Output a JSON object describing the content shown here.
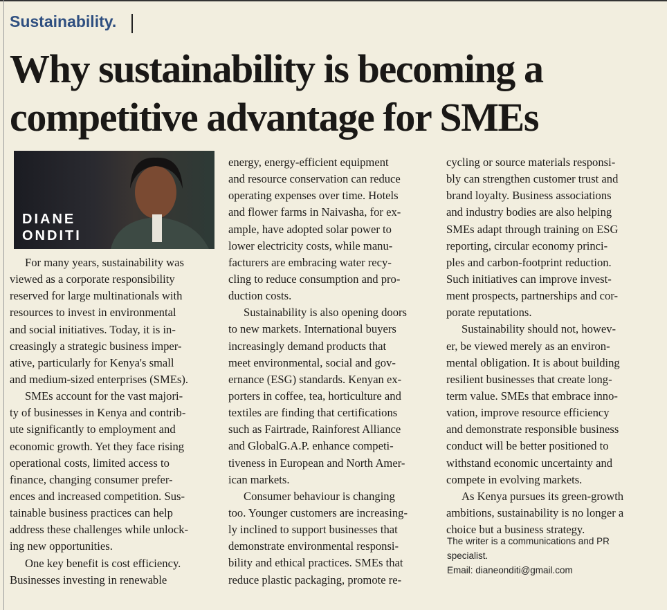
{
  "header": {
    "section": "Sustainability.",
    "title": [
      "Why sustainability is becoming a",
      "competitive advantage for SMEs"
    ]
  },
  "photo": {
    "name_lines": [
      "DIANE",
      "ONDITI"
    ]
  },
  "columns": [
    {
      "paragraphs": [
        {
          "lines": [
            "For many years, sustainability was",
            "viewed as a corporate responsibility",
            "reserved for large multinationals with",
            "resources to invest in environmental",
            "and social initiatives. Today, it is in-",
            "creasingly a strategic business imper-",
            "ative, particularly for Kenya's small",
            "and medium-sized enterprises (SMEs)."
          ]
        },
        {
          "lines": [
            "SMEs account for the vast majori-",
            "ty of businesses in Kenya and contrib-",
            "ute significantly to employment and",
            "economic growth. Yet they face rising",
            "operational costs, limited access to",
            "finance, changing consumer prefer-",
            "ences and increased competition. Sus-",
            "tainable business practices can help",
            "address these challenges while unlock-",
            "ing new opportunities."
          ]
        },
        {
          "lines": [
            "One key benefit is cost efficiency.",
            "Businesses investing in renewable"
          ]
        }
      ]
    },
    {
      "paragraphs": [
        {
          "lines": [
            "energy, energy-efficient equipment",
            "and resource conservation can reduce",
            "operating expenses over time. Hotels",
            "and flower farms in Naivasha, for ex-",
            "ample, have adopted solar power to",
            "lower electricity costs, while manu-",
            "facturers are embracing water recy-",
            "cling to reduce consumption and pro-",
            "duction costs."
          ]
        },
        {
          "lines": [
            "Sustainability is also opening doors",
            "to new markets. International buyers",
            "increasingly demand products that",
            "meet environmental, social and gov-",
            "ernance (ESG) standards. Kenyan ex-",
            "porters in coffee, tea, horticulture and",
            "textiles are finding that certifications",
            "such as Fairtrade, Rainforest Alliance",
            "and GlobalG.A.P. enhance competi-",
            "tiveness in European and North Amer-",
            "ican markets."
          ]
        },
        {
          "lines": [
            "Consumer behaviour is changing",
            "too. Younger customers are increasing-",
            "ly inclined to support businesses that",
            "demonstrate environmental responsi-",
            "bility and ethical practices. SMEs that",
            "reduce plastic packaging, promote re-"
          ]
        }
      ]
    },
    {
      "paragraphs": [
        {
          "lines": [
            "cycling or source materials responsi-",
            "bly can strengthen customer trust and",
            "brand loyalty. Business associations",
            "and industry bodies are also helping",
            "SMEs adapt through training on ESG",
            "reporting, circular economy princi-",
            "ples and carbon-footprint reduction.",
            "Such initiatives can improve invest-",
            "ment prospects, partnerships and cor-",
            "porate reputations."
          ]
        },
        {
          "lines": [
            "Sustainability should not, howev-",
            "er, be viewed merely as an environ-",
            "mental obligation. It is about building",
            "resilient businesses that create long-",
            "term value. SMEs that embrace inno-",
            "vation, improve resource efficiency",
            "and demonstrate responsible business",
            "conduct will be better positioned to",
            "withstand economic uncertainty and",
            "compete in evolving markets."
          ]
        },
        {
          "lines": [
            "As Kenya pursues its green-growth",
            "ambitions, sustainability is no longer a",
            "choice but a business strategy."
          ]
        }
      ]
    }
  ],
  "footer": {
    "lines": [
      "The writer is a communications and PR",
      "specialist.",
      "Email: dianeonditi@gmail.com"
    ]
  }
}
